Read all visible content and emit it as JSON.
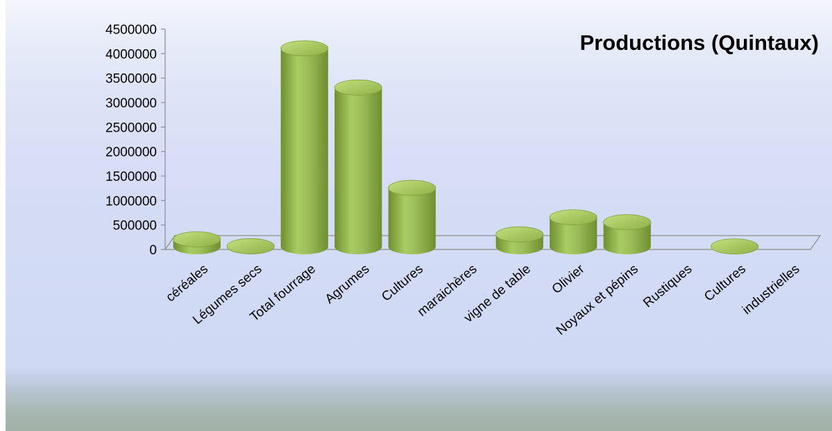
{
  "chart_data": {
    "type": "bar",
    "title": "Productions (Quintaux)",
    "categories": [
      "céréales",
      "Légumes secs",
      "Total fourrage",
      "Agrumes",
      "Cultures",
      "maraichères",
      "vigne de table",
      "Olivier",
      "Noyaux et pépins",
      "Rustiques",
      "Cultures",
      "industrielles"
    ],
    "x_tick_labels": [
      "céréales",
      "Légumes secs",
      "Total fourrage",
      "Agrumes",
      "Cultures",
      "maraichères",
      "vigne de table",
      "Olivier",
      "Noyaux et pépins",
      "Rustiques",
      "Cultures",
      "industrielles"
    ],
    "values": [
      150000,
      10000,
      4050000,
      3250000,
      1200000,
      null,
      250000,
      600000,
      500000,
      null,
      5000,
      null
    ],
    "y_ticks": [
      "0",
      "500000",
      "1000000",
      "1500000",
      "2000000",
      "2500000",
      "3000000",
      "3500000",
      "4000000",
      "4500000"
    ],
    "ylim": [
      0,
      4500000
    ],
    "xlabel": "",
    "ylabel": "",
    "legend": "none",
    "style": "3d-cylinder",
    "colors": {
      "bar": "#9bbb59",
      "bar_light": "#c4e07f",
      "bar_dark": "#6f8f2e",
      "axis": "#8c8c8c"
    }
  }
}
